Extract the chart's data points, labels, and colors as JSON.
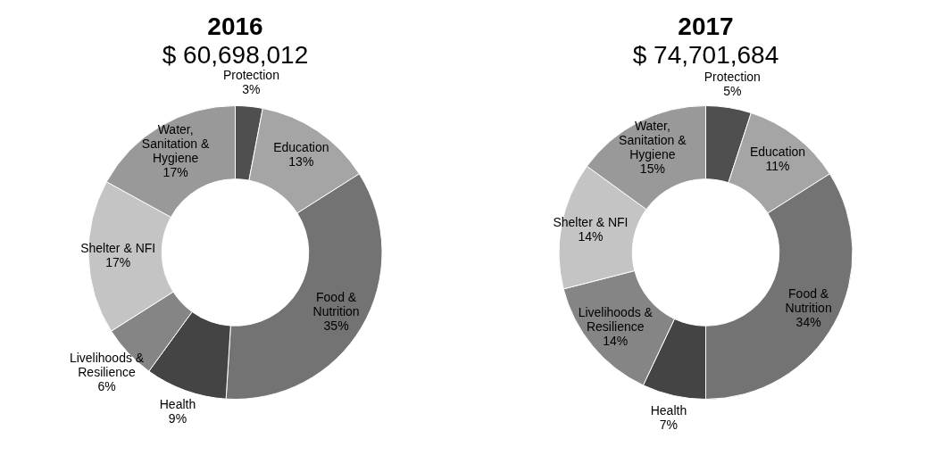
{
  "chart_data": [
    {
      "type": "donut",
      "title": "2016",
      "subtitle": "$ 60,698,012",
      "categories": [
        "Protection",
        "Education",
        "Food & Nutrition",
        "Health",
        "Livelihoods & Resilience",
        "Shelter & NFI",
        "Water, Sanitation & Hygiene"
      ],
      "values": [
        3,
        13,
        35,
        9,
        6,
        17,
        17
      ],
      "value_labels": [
        "3%",
        "13%",
        "35%",
        "9%",
        "6%",
        "17%",
        "17%"
      ],
      "colors": [
        "#4f4f4f",
        "#a5a5a5",
        "#737373",
        "#444444",
        "#858585",
        "#c4c4c4",
        "#999999"
      ],
      "legend": false
    },
    {
      "type": "donut",
      "title": "2017",
      "subtitle": "$ 74,701,684",
      "categories": [
        "Protection",
        "Education",
        "Food & Nutrition",
        "Health",
        "Livelihoods & Resilience",
        "Shelter & NFI",
        "Water, Sanitation & Hygiene"
      ],
      "values": [
        5,
        11,
        34,
        7,
        14,
        14,
        15
      ],
      "value_labels": [
        "5%",
        "11%",
        "34%",
        "7%",
        "14%",
        "14%",
        "15%"
      ],
      "colors": [
        "#4f4f4f",
        "#a5a5a5",
        "#737373",
        "#444444",
        "#858585",
        "#c4c4c4",
        "#999999"
      ],
      "legend": false
    }
  ]
}
